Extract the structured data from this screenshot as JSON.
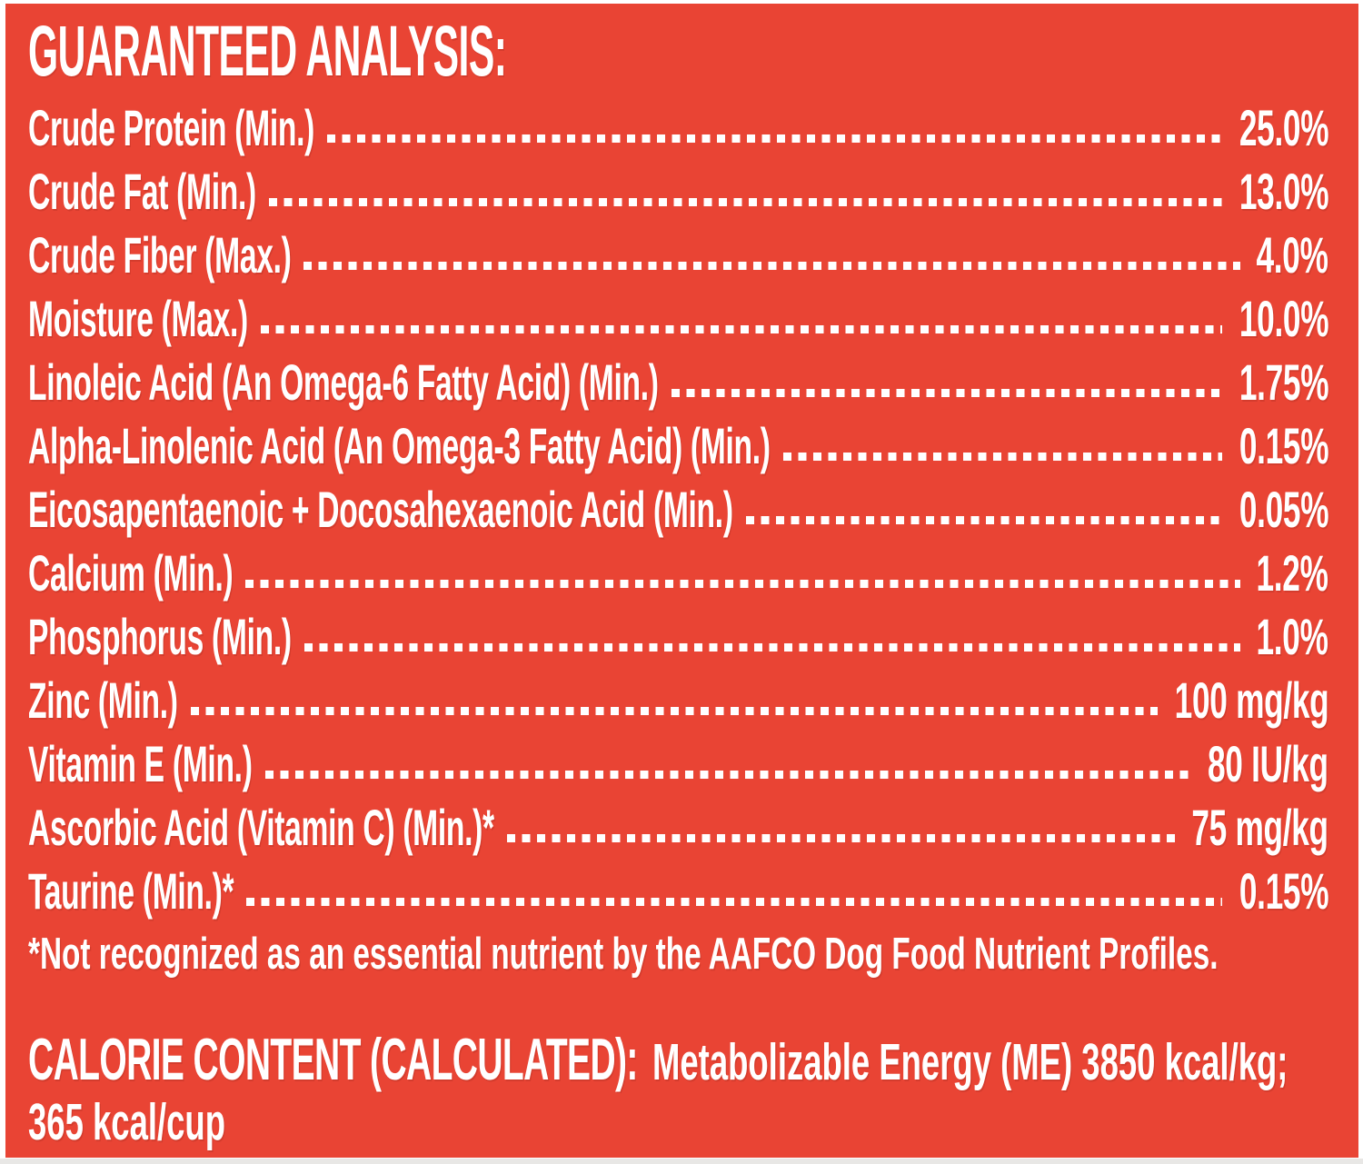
{
  "colors": {
    "panel_background": "#E94434",
    "text": "#FFFFFF"
  },
  "title": "GUARANTEED ANALYSIS:",
  "analysis_rows": [
    {
      "label": "Crude Protein (Min.)",
      "value": "25.0%"
    },
    {
      "label": "Crude Fat (Min.)",
      "value": "13.0%"
    },
    {
      "label": "Crude Fiber (Max.)",
      "value": "4.0%"
    },
    {
      "label": "Moisture (Max.)",
      "value": "10.0%"
    },
    {
      "label": "Linoleic Acid (An Omega-6 Fatty Acid) (Min.)",
      "value": "1.75%"
    },
    {
      "label": "Alpha-Linolenic Acid (An Omega-3 Fatty Acid) (Min.)",
      "value": "0.15%"
    },
    {
      "label": "Eicosapentaenoic + Docosahexaenoic Acid (Min.)",
      "value": "0.05%"
    },
    {
      "label": "Calcium (Min.)",
      "value": "1.2%"
    },
    {
      "label": "Phosphorus (Min.)",
      "value": "1.0%"
    },
    {
      "label": "Zinc (Min.)",
      "value": "100 mg/kg"
    },
    {
      "label": "Vitamin E (Min.)",
      "value": "80 IU/kg"
    },
    {
      "label": "Ascorbic Acid (Vitamin C) (Min.)*",
      "value": "75 mg/kg"
    },
    {
      "label": "Taurine (Min.)*",
      "value": "0.15%"
    }
  ],
  "footnote": "*Not recognized as an essential nutrient by the AAFCO Dog Food Nutrient Profiles.",
  "calorie": {
    "heading": "CALORIE CONTENT (CALCULATED):",
    "detail": "Metabolizable Energy (ME) 3850 kcal/kg;",
    "detail_line2": "365 kcal/cup"
  }
}
